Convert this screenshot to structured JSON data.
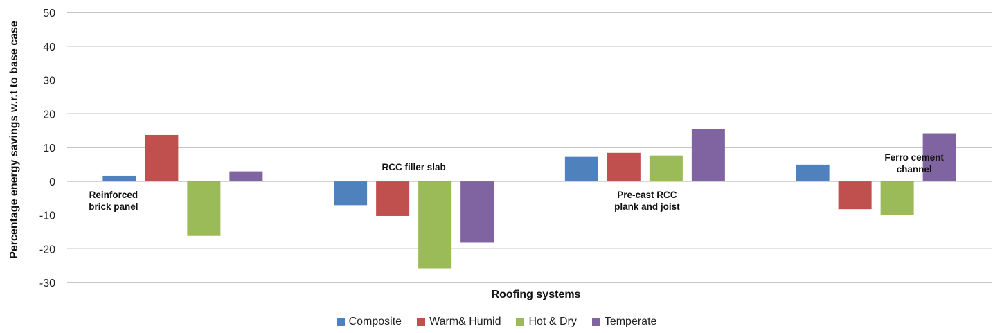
{
  "chart_data": {
    "type": "bar",
    "categories": [
      "Reinforced brick panel",
      "RCC filler slab",
      "Pre-cast RCC plank and joist",
      "Ferro cement channel"
    ],
    "category_label_lines": [
      [
        "Reinforced",
        "brick panel"
      ],
      [
        "RCC filler slab"
      ],
      [
        "Pre-cast RCC",
        "plank and joist"
      ],
      [
        "Ferro cement",
        "channel"
      ]
    ],
    "series": [
      {
        "name": "Composite",
        "color": "#4f81bd",
        "values": [
          1.6,
          -7.1,
          7.2,
          4.9
        ]
      },
      {
        "name": "Warm& Humid",
        "color": "#c0504d",
        "values": [
          13.7,
          -10.3,
          8.4,
          -8.3
        ]
      },
      {
        "name": "Hot & Dry",
        "color": "#9bbb59",
        "values": [
          -16.2,
          -25.8,
          7.6,
          -10.0
        ]
      },
      {
        "name": "Temperate",
        "color": "#8064a2",
        "values": [
          2.9,
          -18.2,
          15.5,
          14.2
        ]
      }
    ],
    "title": "",
    "xlabel": "Roofing systems",
    "ylabel": "Percentage energy savings  w.r.t to base case",
    "ylim": [
      -30,
      50
    ],
    "yticks": [
      50,
      40,
      30,
      20,
      10,
      0,
      -10,
      -20,
      -30
    ],
    "grid": true,
    "legend_position": "bottom"
  }
}
